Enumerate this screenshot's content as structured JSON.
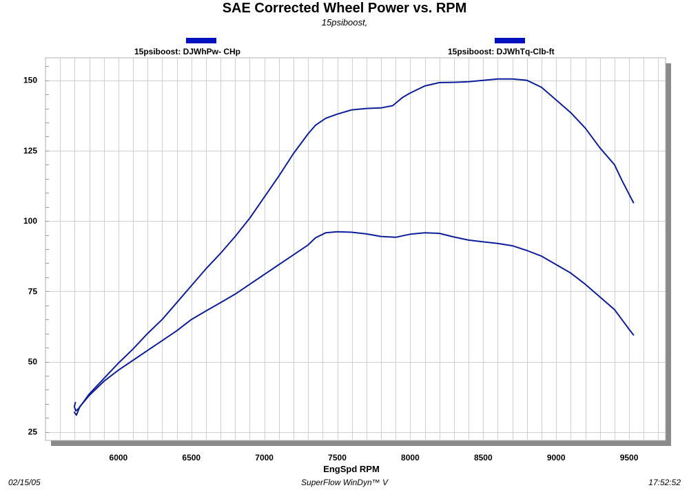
{
  "colors": {
    "series": "#0c1d99",
    "legend": "#0011c0",
    "grid": "#cfcfcf",
    "shadow": "#8a8a8a"
  },
  "footer": {
    "date": "02/15/05",
    "software": "SuperFlow WinDyn™ V",
    "time": "17:52:52"
  },
  "chart_data": {
    "type": "line",
    "title": "SAE Corrected Wheel Power vs. RPM",
    "subtitle": "15psiboost,",
    "xlabel": "EngSpd  RPM",
    "ylabel": "",
    "xlim": [
      5500,
      9750
    ],
    "ylim": [
      22,
      158
    ],
    "xticks": [
      6000,
      6500,
      7000,
      7500,
      8000,
      8500,
      9000,
      9500
    ],
    "yticks": [
      25,
      50,
      75,
      100,
      125,
      150
    ],
    "grid": true,
    "legend_position": "top",
    "series": [
      {
        "name": "15psiboost: DJWhPw- CHp",
        "points": [
          [
            5698,
            32
          ],
          [
            5712,
            31
          ],
          [
            5735,
            34
          ],
          [
            5800,
            38
          ],
          [
            5900,
            43
          ],
          [
            6000,
            47
          ],
          [
            6100,
            50.5
          ],
          [
            6200,
            54
          ],
          [
            6300,
            57.5
          ],
          [
            6400,
            61
          ],
          [
            6500,
            65
          ],
          [
            6600,
            68
          ],
          [
            6700,
            71
          ],
          [
            6800,
            74
          ],
          [
            6900,
            77.5
          ],
          [
            7000,
            81
          ],
          [
            7100,
            84.5
          ],
          [
            7200,
            88
          ],
          [
            7300,
            91.5
          ],
          [
            7350,
            94
          ],
          [
            7420,
            95.8
          ],
          [
            7500,
            96.2
          ],
          [
            7600,
            96
          ],
          [
            7700,
            95.4
          ],
          [
            7800,
            94.5
          ],
          [
            7900,
            94.2
          ],
          [
            8000,
            95.3
          ],
          [
            8100,
            95.8
          ],
          [
            8200,
            95.6
          ],
          [
            8300,
            94.3
          ],
          [
            8400,
            93.2
          ],
          [
            8500,
            92.6
          ],
          [
            8600,
            92
          ],
          [
            8700,
            91.2
          ],
          [
            8800,
            89.5
          ],
          [
            8900,
            87.5
          ],
          [
            9000,
            84.5
          ],
          [
            9100,
            81.5
          ],
          [
            9200,
            77.5
          ],
          [
            9300,
            73
          ],
          [
            9400,
            68.5
          ],
          [
            9450,
            65
          ],
          [
            9500,
            61.5
          ],
          [
            9530,
            59.5
          ]
        ]
      },
      {
        "name": "15psiboost: DJWhTq-Clb-ft",
        "points": [
          [
            5705,
            35.5
          ],
          [
            5698,
            34
          ],
          [
            5708,
            32.5
          ],
          [
            5730,
            33.5
          ],
          [
            5800,
            38.5
          ],
          [
            5900,
            44
          ],
          [
            6000,
            49.5
          ],
          [
            6100,
            54.5
          ],
          [
            6200,
            60
          ],
          [
            6300,
            65
          ],
          [
            6400,
            71
          ],
          [
            6500,
            77
          ],
          [
            6600,
            83
          ],
          [
            6700,
            88.5
          ],
          [
            6800,
            94.5
          ],
          [
            6900,
            101
          ],
          [
            7000,
            108.5
          ],
          [
            7100,
            116
          ],
          [
            7200,
            124
          ],
          [
            7300,
            131
          ],
          [
            7350,
            134
          ],
          [
            7420,
            136.5
          ],
          [
            7500,
            138
          ],
          [
            7600,
            139.5
          ],
          [
            7700,
            140
          ],
          [
            7800,
            140.2
          ],
          [
            7880,
            141
          ],
          [
            7950,
            144
          ],
          [
            8000,
            145.5
          ],
          [
            8100,
            148
          ],
          [
            8200,
            149.2
          ],
          [
            8300,
            149.3
          ],
          [
            8400,
            149.5
          ],
          [
            8500,
            150
          ],
          [
            8600,
            150.5
          ],
          [
            8700,
            150.5
          ],
          [
            8800,
            150
          ],
          [
            8900,
            147.5
          ],
          [
            9000,
            143
          ],
          [
            9100,
            138.5
          ],
          [
            9200,
            133
          ],
          [
            9300,
            126
          ],
          [
            9400,
            120
          ],
          [
            9450,
            114.5
          ],
          [
            9500,
            109.5
          ],
          [
            9530,
            106.5
          ]
        ]
      }
    ]
  }
}
